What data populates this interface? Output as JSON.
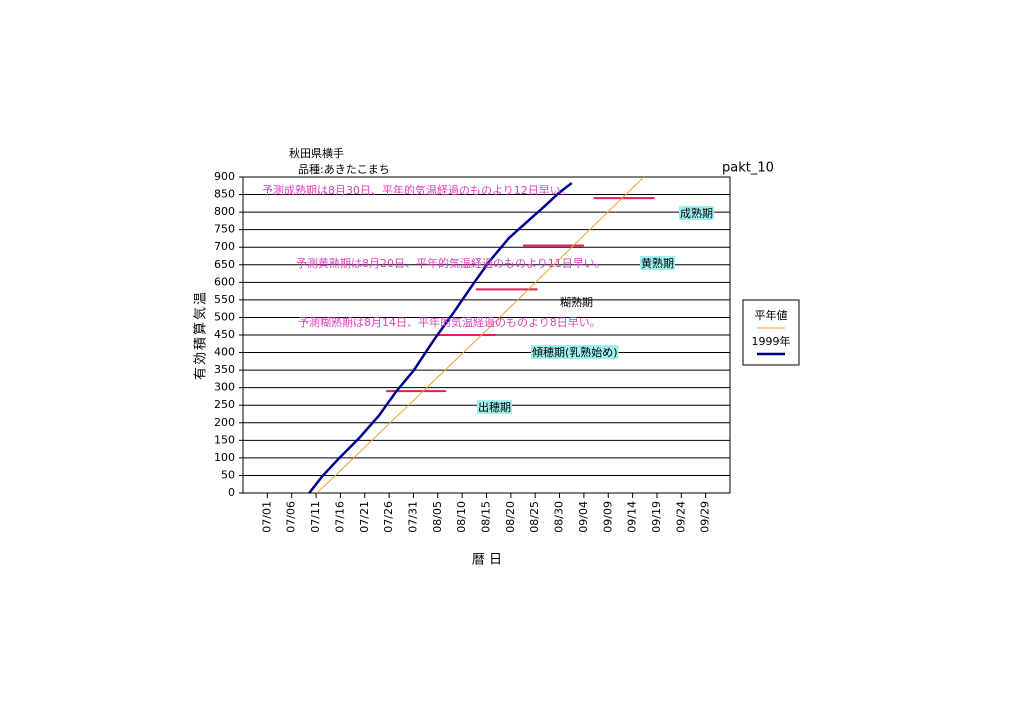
{
  "chart_data": {
    "type": "line",
    "title": "秋田県横手",
    "subtitle": "品種:あきたこまち",
    "code": "pakt_10",
    "x_label": "暦 日",
    "y_label": "有効積算気温",
    "xlim": [
      -5,
      95
    ],
    "xticks": [
      {
        "value": 0,
        "label": "07/01"
      },
      {
        "value": 5,
        "label": "07/06"
      },
      {
        "value": 10,
        "label": "07/11"
      },
      {
        "value": 15,
        "label": "07/16"
      },
      {
        "value": 20,
        "label": "07/21"
      },
      {
        "value": 25,
        "label": "07/26"
      },
      {
        "value": 30,
        "label": "07/31"
      },
      {
        "value": 35,
        "label": "08/05"
      },
      {
        "value": 40,
        "label": "08/10"
      },
      {
        "value": 45,
        "label": "08/15"
      },
      {
        "value": 50,
        "label": "08/20"
      },
      {
        "value": 55,
        "label": "08/25"
      },
      {
        "value": 60,
        "label": "08/30"
      },
      {
        "value": 65,
        "label": "09/04"
      },
      {
        "value": 70,
        "label": "09/09"
      },
      {
        "value": 75,
        "label": "09/14"
      },
      {
        "value": 80,
        "label": "09/19"
      },
      {
        "value": 85,
        "label": "09/24"
      },
      {
        "value": 90,
        "label": "09/29"
      }
    ],
    "ylim": [
      0,
      900
    ],
    "yticks": [
      0,
      50,
      100,
      150,
      200,
      250,
      300,
      350,
      400,
      450,
      500,
      550,
      600,
      650,
      700,
      750,
      800,
      850,
      900
    ],
    "grid": true,
    "series": [
      {
        "name": "平年値",
        "color": "#f0a030",
        "x": [
          10.2,
          44,
          77.3
        ],
        "values": [
          0,
          450,
          900
        ]
      },
      {
        "name": "1999年",
        "color": "#00008b",
        "x": [
          8.6,
          11.3,
          14.8,
          18.9,
          23,
          26.4,
          30.1,
          34.2,
          38.3,
          42.4,
          45.5,
          49.6,
          53.7,
          56.8,
          59.8,
          62.5
        ],
        "values": [
          0,
          48,
          100,
          157,
          222,
          288,
          350,
          436,
          515,
          598,
          658,
          726,
          777,
          815,
          854,
          883
        ]
      }
    ],
    "stage_bars": {
      "color": "#e0205a",
      "x_start": [
        24.4,
        34.4,
        42.8,
        52.5,
        67
      ],
      "x_end": [
        36.7,
        46.9,
        55.5,
        65,
        79.5
      ],
      "values": [
        290,
        450,
        580,
        705,
        840
      ]
    },
    "stage_labels": [
      "出穂期",
      "傾穂期(乳熟始め)",
      "糊熟期",
      "黄熟期",
      "成熟期"
    ],
    "annotations": [
      "予測成熟期は8月30日、平年的気温経過のものより12日早い。",
      "予測黄熟期は8月20日、平年的気温経過のものより11日早い。",
      "予測糊熟期は8月14日、平年的気温経過のものより8日早い。"
    ]
  }
}
